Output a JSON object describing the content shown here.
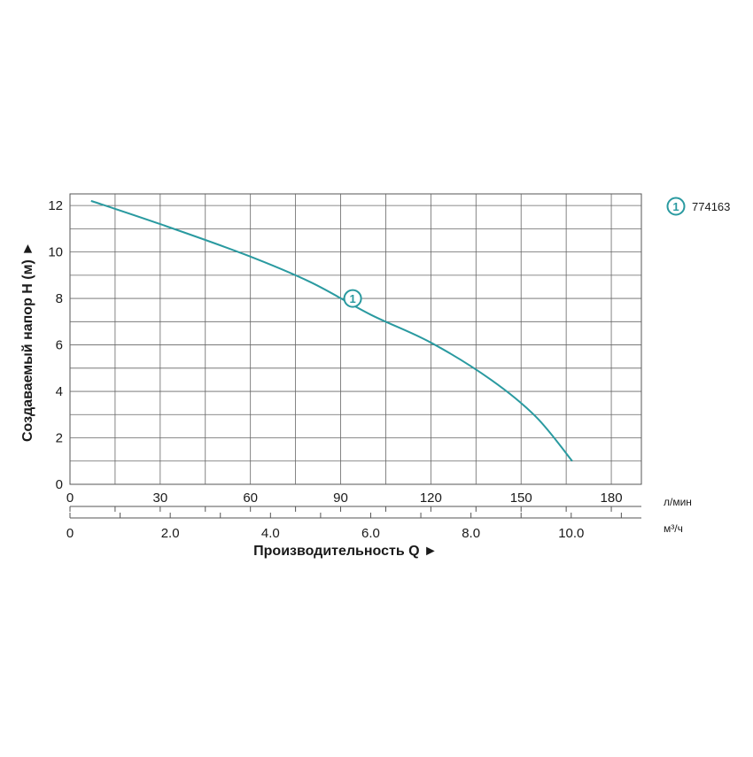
{
  "chart_data": {
    "type": "line",
    "xlabel": "Производительность Q ►",
    "ylabel": "Создаваемый напор H (м) ►",
    "x_unit": "л/мин",
    "x2_unit": "м³/ч",
    "xlim": [
      0,
      190
    ],
    "ylim": [
      0,
      12.5
    ],
    "x2lim": [
      0,
      11.4
    ],
    "x_ticks": [
      "0",
      "30",
      "60",
      "90",
      "120",
      "150",
      "180"
    ],
    "x_tick_values": [
      0,
      30,
      60,
      90,
      120,
      150,
      180
    ],
    "x2_ticks": [
      "0",
      "2.0",
      "4.0",
      "6.0",
      "8.0",
      "10.0"
    ],
    "x2_tick_values": [
      0,
      2,
      4,
      6,
      8,
      10
    ],
    "y_ticks": [
      "0",
      "2",
      "4",
      "6",
      "8",
      "10",
      "12"
    ],
    "y_tick_values": [
      0,
      2,
      4,
      6,
      8,
      10,
      12
    ],
    "grid": true,
    "legend_position": "top-right",
    "series": [
      {
        "name": "774163",
        "marker_label": "1",
        "marker_at": [
          94,
          8.0
        ],
        "color": "#2a9aa0",
        "x": [
          7,
          30,
          58,
          80,
          100,
          120,
          140,
          155,
          167
        ],
        "y": [
          12.2,
          11.2,
          9.9,
          8.7,
          7.3,
          6.1,
          4.5,
          2.9,
          1.0
        ]
      }
    ]
  }
}
